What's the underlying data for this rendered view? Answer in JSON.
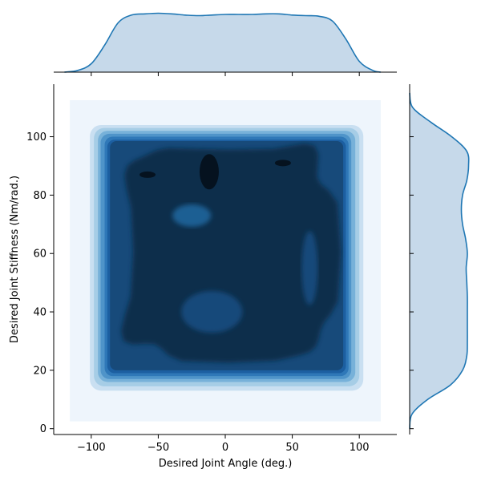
{
  "chart_data": {
    "type": "kde-joint",
    "title": "",
    "xlabel": "Desired Joint Angle (deg.)",
    "ylabel": "Desired Joint Stiffness (Nm/rad.)",
    "xlim": [
      -128,
      128
    ],
    "ylim": [
      -2,
      118
    ],
    "xticks": [
      -100,
      -50,
      0,
      50,
      100
    ],
    "yticks": [
      0,
      20,
      40,
      60,
      80,
      100
    ],
    "grid": false,
    "legend": "none",
    "joint": {
      "x_range": [
        -116,
        116
      ],
      "y_range": [
        2.5,
        112.5
      ],
      "density_levels": [
        {
          "level": 1,
          "x": [
            -116,
            116
          ],
          "y": [
            2.5,
            112.5
          ],
          "corner": 0,
          "color": "#eef5fc"
        },
        {
          "level": 2,
          "x": [
            -101,
            103
          ],
          "y": [
            13,
            104
          ],
          "corner": 14,
          "color": "#c9dff1"
        },
        {
          "level": 3,
          "x": [
            -98,
            100
          ],
          "y": [
            14.5,
            103
          ],
          "corner": 13,
          "color": "#a6cde6"
        },
        {
          "level": 4,
          "x": [
            -95,
            97
          ],
          "y": [
            16,
            102
          ],
          "corner": 12,
          "color": "#77b1d9"
        },
        {
          "level": 5,
          "x": [
            -93,
            94
          ],
          "y": [
            17,
            101
          ],
          "corner": 11,
          "color": "#4f94c9"
        },
        {
          "level": 6,
          "x": [
            -90,
            92
          ],
          "y": [
            18,
            100
          ],
          "corner": 10,
          "color": "#2f78b8"
        },
        {
          "level": 7,
          "x": [
            -88,
            90
          ],
          "y": [
            19,
            99
          ],
          "corner": 9,
          "color": "#1c5fa1"
        },
        {
          "level": 8,
          "x": [
            -86,
            88
          ],
          "y": [
            20,
            98.5
          ],
          "corner": 8,
          "color": "#174a7a"
        }
      ],
      "core": [
        {
          "x": [
            -75,
            80
          ],
          "y": [
            24,
            97
          ],
          "color": "#0d2e4c"
        }
      ],
      "peaks": [
        {
          "x": -12,
          "y": 88,
          "color": "#05121f"
        },
        {
          "x": -58,
          "y": 87,
          "color": "#05121f"
        },
        {
          "x": 43,
          "y": 91,
          "color": "#05121f"
        }
      ],
      "holes": [
        {
          "x": -25,
          "y": 73,
          "color": "#1f5f93"
        },
        {
          "x": 63,
          "y": 55,
          "color": "#174a7a"
        },
        {
          "x": -10,
          "y": 40,
          "color": "#174a7a"
        }
      ]
    },
    "marginal_x": {
      "x": [
        -120,
        -110,
        -100,
        -90,
        -80,
        -70,
        -60,
        -50,
        -40,
        -30,
        -20,
        -10,
        0,
        10,
        20,
        30,
        40,
        50,
        60,
        70,
        80,
        90,
        100,
        110,
        116
      ],
      "density": [
        0.0,
        0.03,
        0.14,
        0.45,
        0.82,
        0.95,
        0.97,
        0.98,
        0.97,
        0.95,
        0.94,
        0.95,
        0.96,
        0.96,
        0.96,
        0.97,
        0.97,
        0.95,
        0.94,
        0.93,
        0.85,
        0.55,
        0.18,
        0.03,
        0.0
      ]
    },
    "marginal_y": {
      "y": [
        0,
        5,
        10,
        15,
        20,
        25,
        30,
        35,
        40,
        45,
        50,
        55,
        60,
        65,
        70,
        75,
        80,
        85,
        90,
        95,
        100,
        105,
        110,
        115
      ],
      "density": [
        0.0,
        0.04,
        0.3,
        0.68,
        0.88,
        0.95,
        0.96,
        0.96,
        0.96,
        0.96,
        0.95,
        0.94,
        0.96,
        0.93,
        0.88,
        0.86,
        0.88,
        0.95,
        0.98,
        0.95,
        0.7,
        0.35,
        0.05,
        0.0
      ]
    },
    "colors": {
      "marginal_line": "#1f77b4",
      "marginal_fill": "#c6d9ea",
      "axis": "#000000"
    }
  }
}
